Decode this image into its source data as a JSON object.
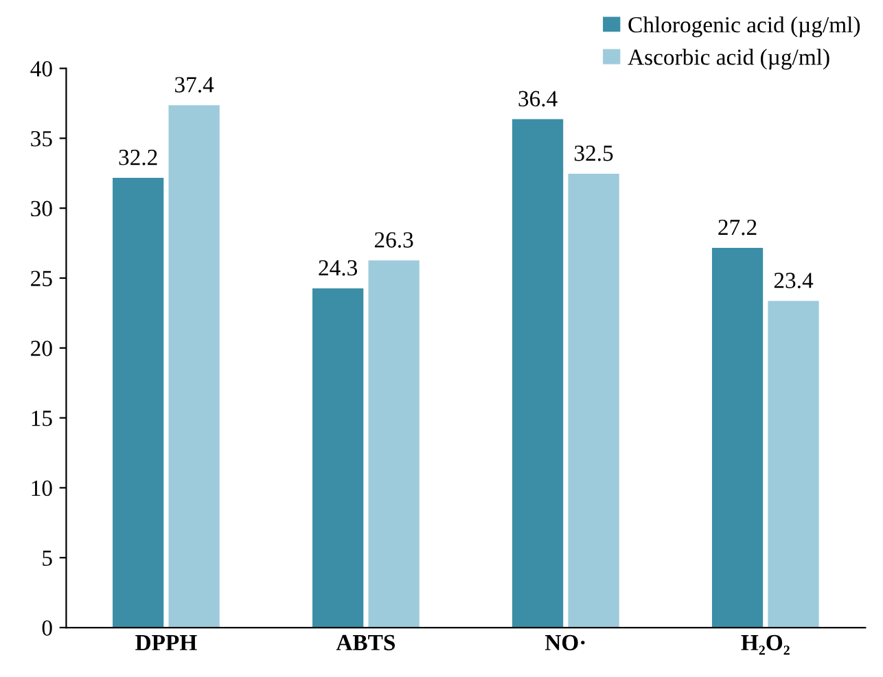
{
  "chart_data": {
    "type": "bar",
    "categories": [
      "DPPH",
      "ABTS",
      "NO·",
      "H₂O₂"
    ],
    "series": [
      {
        "name": "Chlorogenic acid (µg/ml)",
        "color": "#3b8ea6",
        "values": [
          32.2,
          24.3,
          36.4,
          27.2
        ]
      },
      {
        "name": "Ascorbic acid (µg/ml)",
        "color": "#9dcbdc",
        "values": [
          37.4,
          26.3,
          32.5,
          23.4
        ]
      }
    ],
    "ylim": [
      0,
      40
    ],
    "yticks": [
      0,
      5,
      10,
      15,
      20,
      25,
      30,
      35,
      40
    ],
    "grid": false,
    "legend": "top right",
    "data_labels": true
  }
}
